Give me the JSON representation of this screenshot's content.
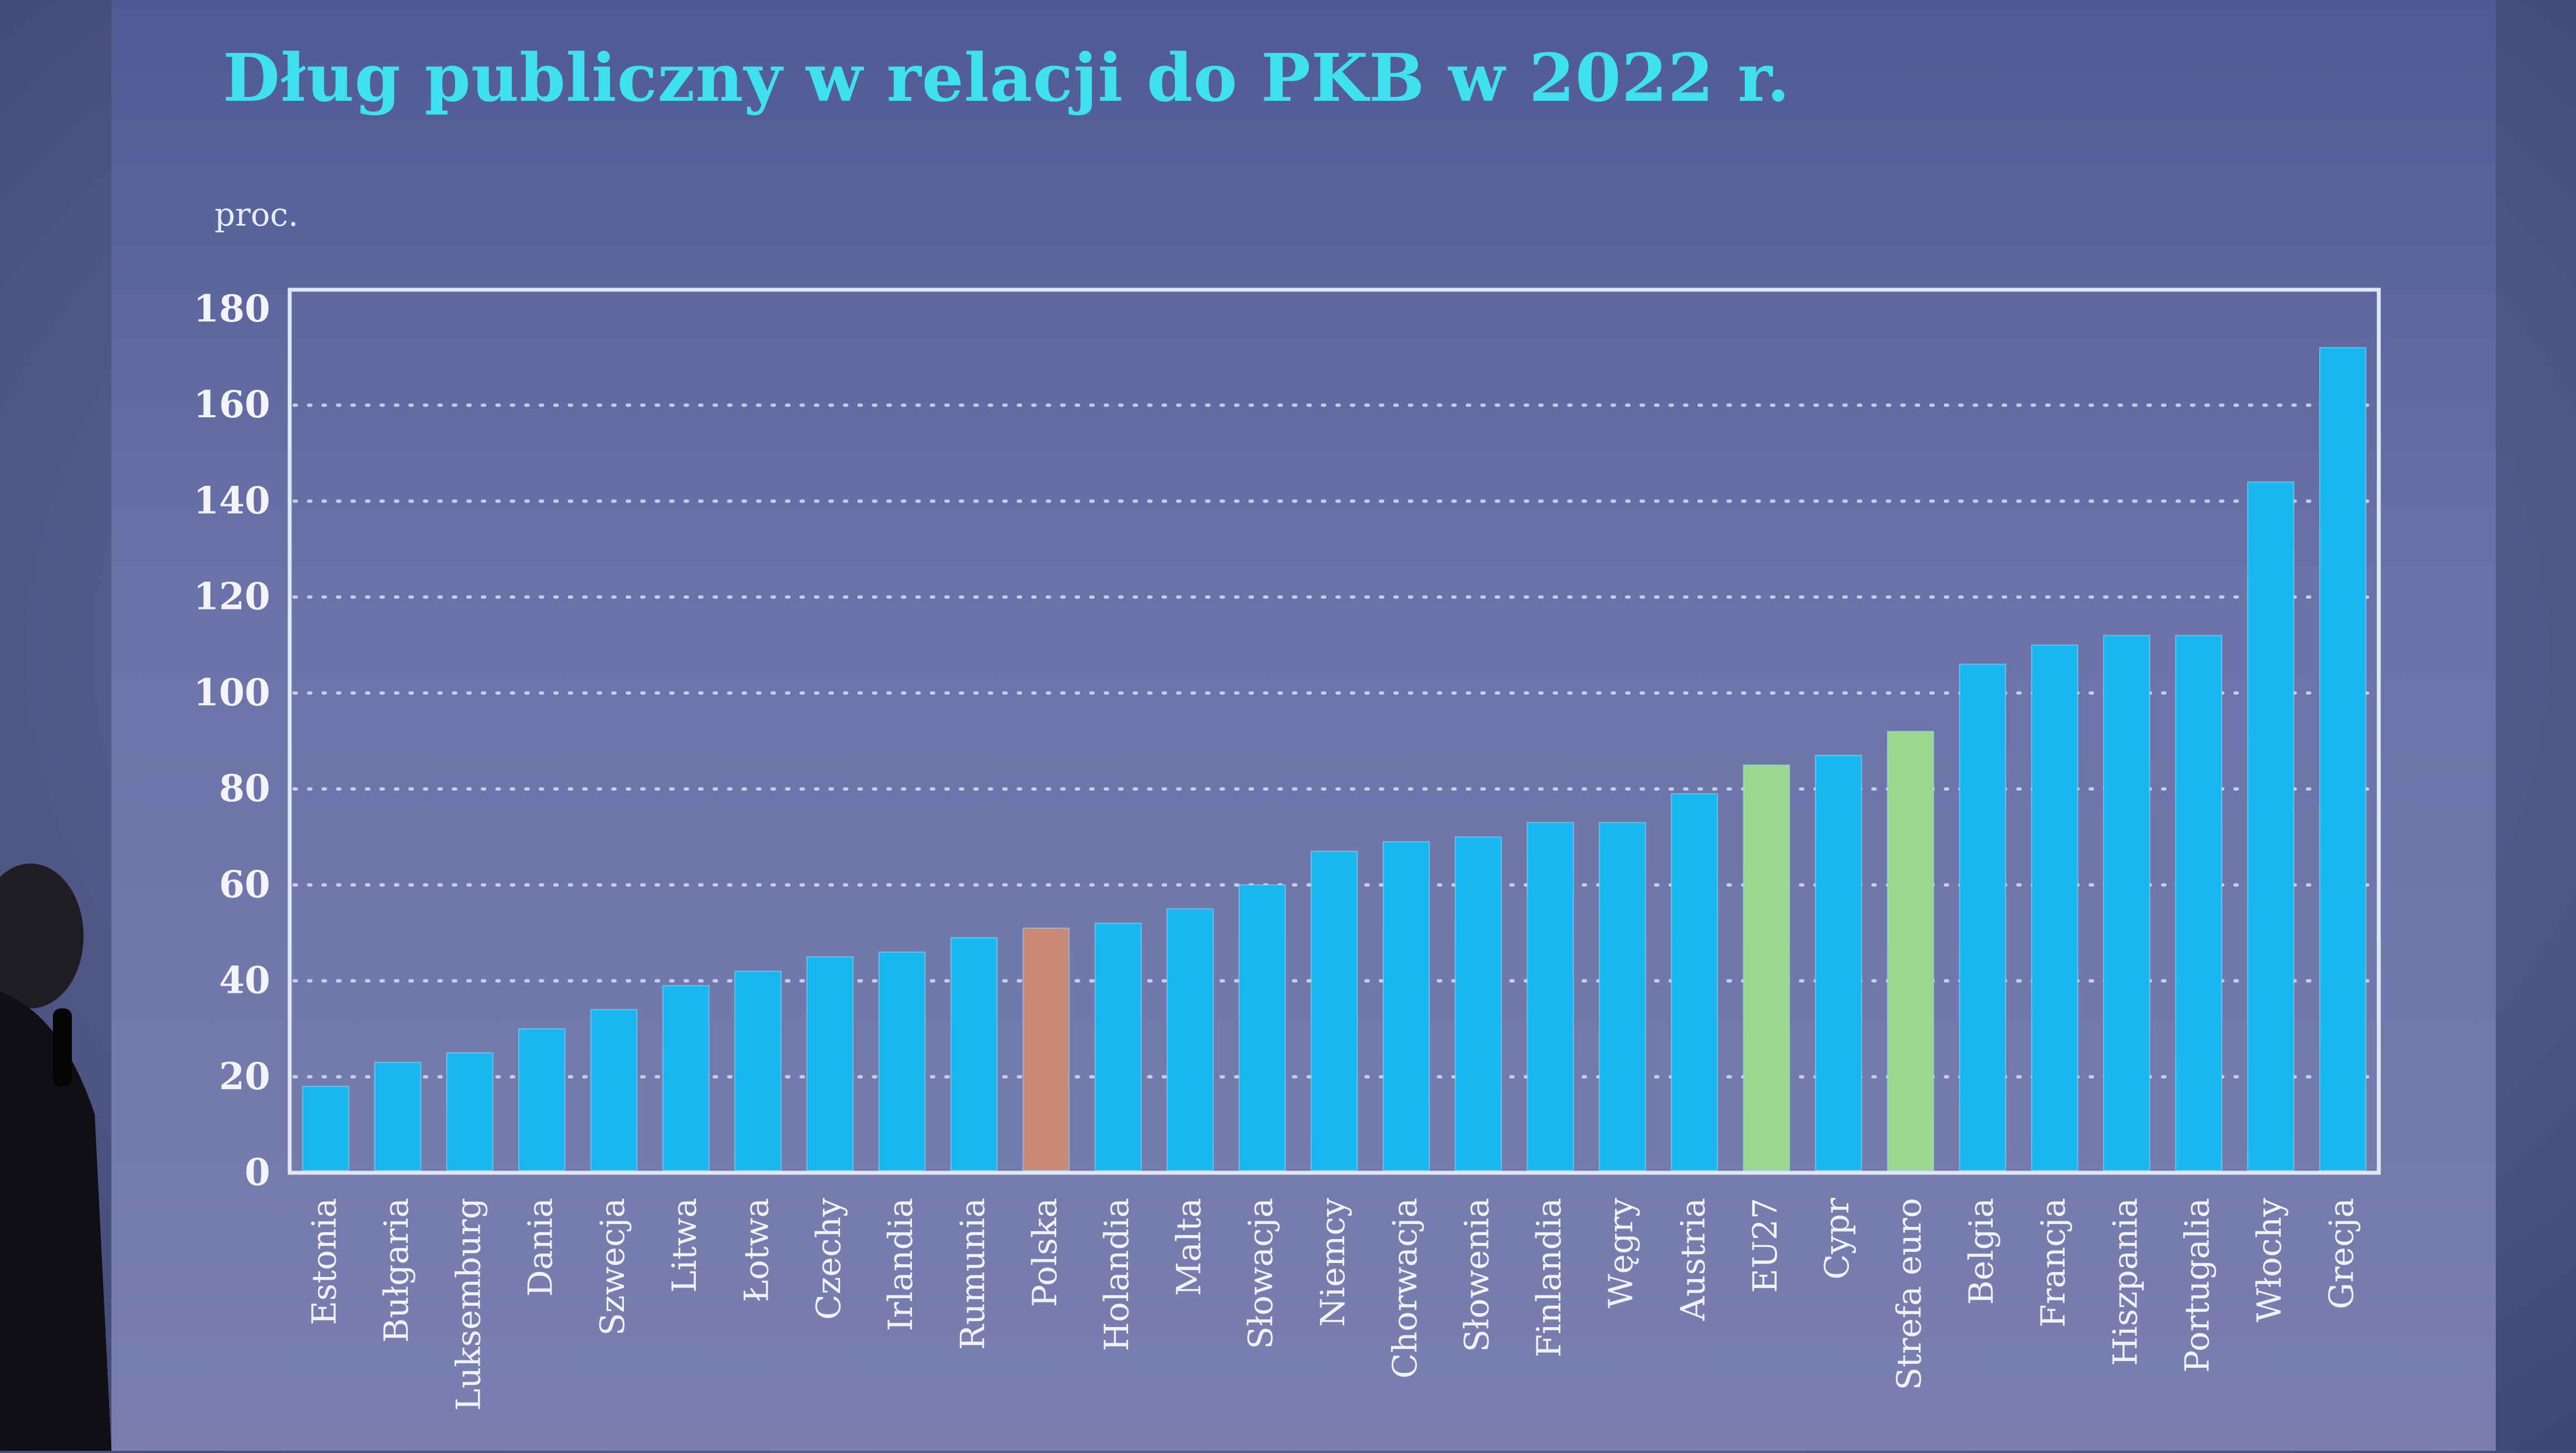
{
  "slide": {
    "title": "Dług publiczny w relacji do PKB w 2022 r."
  },
  "chart_data": {
    "type": "bar",
    "title": "Dług publiczny w relacji do PKB w 2022 r.",
    "ylabel": "proc.",
    "xlabel": "",
    "ylim": [
      0,
      180
    ],
    "yticks": [
      0,
      20,
      40,
      60,
      80,
      100,
      120,
      140,
      160,
      180
    ],
    "grid": true,
    "categories": [
      "Estonia",
      "Bułgaria",
      "Luksemburg",
      "Dania",
      "Szwecja",
      "Litwa",
      "Łotwa",
      "Czechy",
      "Irlandia",
      "Rumunia",
      "Polska",
      "Holandia",
      "Malta",
      "Słowacja",
      "Niemcy",
      "Chorwacja",
      "Słowenia",
      "Finlandia",
      "Węgry",
      "Austria",
      "EU27",
      "Cypr",
      "Strefa euro",
      "Belgia",
      "Francja",
      "Hiszpania",
      "Portugalia",
      "Włochy",
      "Grecja"
    ],
    "values": [
      18,
      23,
      25,
      30,
      34,
      39,
      42,
      45,
      46,
      49,
      51,
      52,
      55,
      60,
      67,
      69,
      70,
      73,
      73,
      79,
      85,
      87,
      92,
      106,
      110,
      112,
      112,
      144,
      172
    ],
    "bar_colors": {
      "default": "#19b6f0",
      "Polska": "#c98a78",
      "EU27": "#9cd68f",
      "Strefa euro": "#9cd68f"
    }
  }
}
